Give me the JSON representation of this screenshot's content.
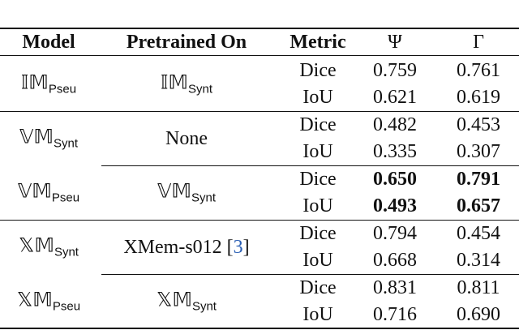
{
  "table": {
    "columns": [
      "Model",
      "Pretrained On",
      "Metric",
      "Ψ",
      "Γ"
    ],
    "blocks": [
      {
        "rule_above": "none",
        "model": {
          "base": "𝕀𝕄",
          "sub": "Pseu"
        },
        "pretrained": {
          "base": "𝕀𝕄",
          "sub": "Synt"
        },
        "rows": [
          {
            "metric": "Dice",
            "values": [
              "0.759",
              "0.761"
            ]
          },
          {
            "metric": "IoU",
            "values": [
              "0.621",
              "0.619"
            ]
          }
        ]
      },
      {
        "rule_above": "full",
        "model": {
          "base": "𝕍𝕄",
          "sub": "Synt"
        },
        "pretrained": {
          "parts": [
            {
              "text": "None"
            }
          ]
        },
        "rows": [
          {
            "metric": "Dice",
            "values": [
              "0.482",
              "0.453"
            ]
          },
          {
            "metric": "IoU",
            "values": [
              "0.335",
              "0.307"
            ]
          }
        ]
      },
      {
        "rule_above": "partial",
        "bold": true,
        "model": {
          "base": "𝕍𝕄",
          "sub": "Pseu"
        },
        "pretrained": {
          "base": "𝕍𝕄",
          "sub": "Synt"
        },
        "rows": [
          {
            "metric": "Dice",
            "values": [
              "0.650",
              "0.791"
            ]
          },
          {
            "metric": "IoU",
            "values": [
              "0.493",
              "0.657"
            ]
          }
        ]
      },
      {
        "rule_above": "full",
        "model": {
          "base": "𝕏𝕄",
          "sub": "Synt"
        },
        "pretrained": {
          "parts": [
            {
              "text": "XMem-s012 ["
            },
            {
              "text": "3",
              "color": "#2b5fb4"
            },
            {
              "text": "]"
            }
          ]
        },
        "rows": [
          {
            "metric": "Dice",
            "values": [
              "0.794",
              "0.454"
            ]
          },
          {
            "metric": "IoU",
            "values": [
              "0.668",
              "0.314"
            ]
          }
        ]
      },
      {
        "rule_above": "partial",
        "model": {
          "base": "𝕏𝕄",
          "sub": "Pseu"
        },
        "pretrained": {
          "base": "𝕏𝕄",
          "sub": "Synt"
        },
        "rows": [
          {
            "metric": "Dice",
            "values": [
              "0.831",
              "0.811"
            ]
          },
          {
            "metric": "IoU",
            "values": [
              "0.716",
              "0.690"
            ]
          }
        ]
      }
    ]
  }
}
